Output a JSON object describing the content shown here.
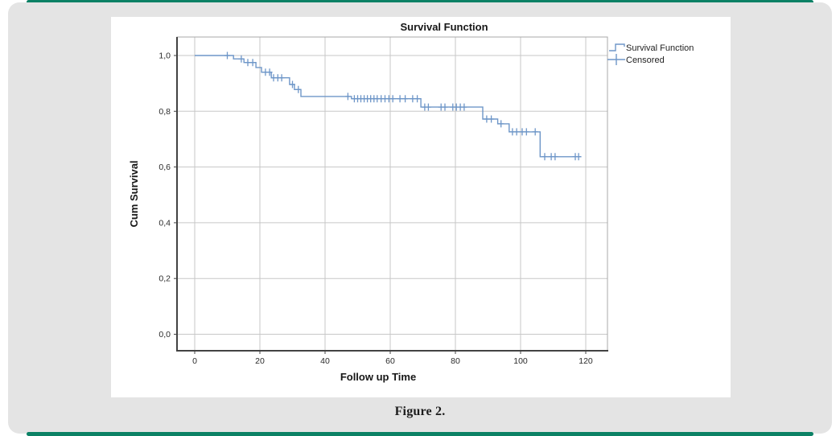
{
  "page": {
    "caption": "Figure 2.",
    "accent_color": "#0b8165",
    "panel_color": "#e4e4e4",
    "chart_bg": "#ffffff"
  },
  "chart": {
    "title": "Survival Function",
    "x_label": "Follow up Time",
    "y_label": "Cum Survival",
    "legend": [
      {
        "label": "Survival Function",
        "symbol": "step-line-icon"
      },
      {
        "label": "Censored",
        "symbol": "plus-icon"
      }
    ],
    "colors": {
      "curve": "#6e96c8",
      "gridline": "#c7c7c7",
      "frame": "#a8a8a8",
      "axis": "#424242"
    }
  },
  "chart_data": {
    "type": "line",
    "subtype": "kaplan-meier-step",
    "title": "Survival Function",
    "xlabel": "Follow up Time",
    "ylabel": "Cum Survival",
    "x_ticks": [
      0,
      20,
      40,
      60,
      80,
      100,
      120
    ],
    "y_ticks": [
      {
        "label": "1,0",
        "value": 1.0
      },
      {
        "label": "0,8",
        "value": 0.8
      },
      {
        "label": "0,6",
        "value": 0.6
      },
      {
        "label": "0,4",
        "value": 0.4
      },
      {
        "label": "0,2",
        "value": 0.2
      },
      {
        "label": "0,0",
        "value": 0.0
      }
    ],
    "xlim": [
      -5.4,
      126.7
    ],
    "ylim": [
      -0.06,
      1.066
    ],
    "grid": true,
    "legend_position": "top-right-outside",
    "series": [
      {
        "name": "Survival Function",
        "start": {
          "t": 0,
          "s": 1.0
        },
        "end_t": 118.5,
        "steps": [
          {
            "t": 11.9,
            "s": 0.988
          },
          {
            "t": 15.1,
            "s": 0.975
          },
          {
            "t": 18.8,
            "s": 0.957
          },
          {
            "t": 20.5,
            "s": 0.94
          },
          {
            "t": 23.5,
            "s": 0.92
          },
          {
            "t": 29.1,
            "s": 0.896
          },
          {
            "t": 30.6,
            "s": 0.878
          },
          {
            "t": 32.6,
            "s": 0.853
          },
          {
            "t": 48.1,
            "s": 0.845
          },
          {
            "t": 69.4,
            "s": 0.815
          },
          {
            "t": 88.4,
            "s": 0.772
          },
          {
            "t": 93.0,
            "s": 0.755
          },
          {
            "t": 96.5,
            "s": 0.726
          },
          {
            "t": 106.0,
            "s": 0.637
          }
        ]
      },
      {
        "name": "Censored",
        "points": [
          {
            "t": 10.0,
            "s": 1.0
          },
          {
            "t": 14.3,
            "s": 0.988
          },
          {
            "t": 16.3,
            "s": 0.975
          },
          {
            "t": 17.8,
            "s": 0.975
          },
          {
            "t": 21.7,
            "s": 0.94
          },
          {
            "t": 23.0,
            "s": 0.94
          },
          {
            "t": 24.2,
            "s": 0.92
          },
          {
            "t": 25.5,
            "s": 0.92
          },
          {
            "t": 26.7,
            "s": 0.92
          },
          {
            "t": 30.0,
            "s": 0.896
          },
          {
            "t": 31.8,
            "s": 0.878
          },
          {
            "t": 47.0,
            "s": 0.853
          },
          {
            "t": 49.0,
            "s": 0.845
          },
          {
            "t": 50.0,
            "s": 0.845
          },
          {
            "t": 51.0,
            "s": 0.845
          },
          {
            "t": 52.0,
            "s": 0.845
          },
          {
            "t": 53.0,
            "s": 0.845
          },
          {
            "t": 54.0,
            "s": 0.845
          },
          {
            "t": 55.0,
            "s": 0.845
          },
          {
            "t": 56.0,
            "s": 0.845
          },
          {
            "t": 57.2,
            "s": 0.845
          },
          {
            "t": 58.4,
            "s": 0.845
          },
          {
            "t": 59.6,
            "s": 0.845
          },
          {
            "t": 60.8,
            "s": 0.845
          },
          {
            "t": 63.0,
            "s": 0.845
          },
          {
            "t": 64.6,
            "s": 0.845
          },
          {
            "t": 66.9,
            "s": 0.845
          },
          {
            "t": 68.3,
            "s": 0.845
          },
          {
            "t": 70.6,
            "s": 0.815
          },
          {
            "t": 71.7,
            "s": 0.815
          },
          {
            "t": 75.6,
            "s": 0.815
          },
          {
            "t": 76.8,
            "s": 0.815
          },
          {
            "t": 79.2,
            "s": 0.815
          },
          {
            "t": 80.3,
            "s": 0.815
          },
          {
            "t": 81.5,
            "s": 0.815
          },
          {
            "t": 82.7,
            "s": 0.815
          },
          {
            "t": 89.6,
            "s": 0.772
          },
          {
            "t": 91.0,
            "s": 0.772
          },
          {
            "t": 94.0,
            "s": 0.755
          },
          {
            "t": 97.5,
            "s": 0.726
          },
          {
            "t": 98.8,
            "s": 0.726
          },
          {
            "t": 100.5,
            "s": 0.726
          },
          {
            "t": 101.8,
            "s": 0.726
          },
          {
            "t": 104.5,
            "s": 0.726
          },
          {
            "t": 107.4,
            "s": 0.637
          },
          {
            "t": 109.4,
            "s": 0.637
          },
          {
            "t": 110.6,
            "s": 0.637
          },
          {
            "t": 116.8,
            "s": 0.637
          },
          {
            "t": 117.8,
            "s": 0.637
          }
        ]
      }
    ]
  }
}
